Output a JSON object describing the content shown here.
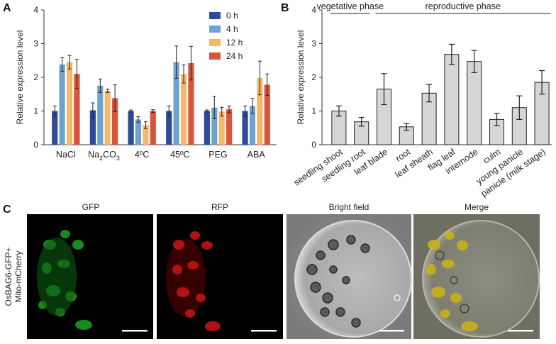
{
  "panels": {
    "a": "A",
    "b": "B",
    "c": "C"
  },
  "chart_data": [
    {
      "panel": "A",
      "type": "bar",
      "ylabel": "Relative expression level",
      "ylim": [
        0,
        4
      ],
      "yticks": [
        "0",
        "1",
        "2",
        "3",
        "4"
      ],
      "categories": [
        "NaCl",
        "Na2CO3",
        "4ºC",
        "45ºC",
        "PEG",
        "ABA"
      ],
      "category_labels": [
        {
          "main": "NaCl",
          "sub": "",
          "tail": ""
        },
        {
          "main": "Na",
          "sub": "2",
          "tail": "CO",
          "sub2": "3"
        },
        {
          "main": "4ºC",
          "sub": "",
          "tail": ""
        },
        {
          "main": "45ºC",
          "sub": "",
          "tail": ""
        },
        {
          "main": "PEG",
          "sub": "",
          "tail": ""
        },
        {
          "main": "ABA",
          "sub": "",
          "tail": ""
        }
      ],
      "legend_position": "top-right",
      "series": [
        {
          "name": "0 h",
          "color": "#2e4a9a",
          "values": [
            1.0,
            1.02,
            1.0,
            1.0,
            1.0,
            1.0
          ],
          "errors": [
            0.15,
            0.22,
            0.03,
            0.15,
            0.03,
            0.15
          ]
        },
        {
          "name": "4 h",
          "color": "#6fa3cf",
          "values": [
            2.38,
            1.75,
            0.75,
            2.45,
            1.1,
            1.15
          ],
          "errors": [
            0.2,
            0.2,
            0.08,
            0.48,
            0.33,
            0.22
          ]
        },
        {
          "name": "12 h",
          "color": "#f5b86a",
          "values": [
            2.45,
            1.6,
            0.58,
            2.1,
            0.98,
            1.98
          ],
          "errors": [
            0.2,
            0.05,
            0.1,
            0.27,
            0.13,
            0.5
          ]
        },
        {
          "name": "24 h",
          "color": "#d9543a",
          "values": [
            2.1,
            1.38,
            1.0,
            2.42,
            1.05,
            1.78
          ],
          "errors": [
            0.43,
            0.4,
            0.04,
            0.5,
            0.1,
            0.32
          ]
        }
      ]
    },
    {
      "panel": "B",
      "type": "bar",
      "ylabel": "Relative expression level",
      "ylim": [
        0,
        4
      ],
      "yticks": [
        "0",
        "1",
        "2",
        "3",
        "4"
      ],
      "phase_labels": [
        "vegetative phase",
        "reproductive phase"
      ],
      "categories": [
        "seedling shoot",
        "seedling root",
        "leaf blade",
        "root",
        "leaf sheath",
        "flag leaf",
        "internode",
        "culm",
        "young panicle",
        "panicle (milk stage)"
      ],
      "values": [
        1.0,
        0.68,
        1.65,
        0.53,
        1.53,
        2.68,
        2.47,
        0.75,
        1.1,
        1.85
      ],
      "errors": [
        0.15,
        0.13,
        0.46,
        0.1,
        0.26,
        0.3,
        0.33,
        0.18,
        0.35,
        0.35
      ],
      "bar_color": "#d6d6d6"
    }
  ],
  "microscopy": {
    "row_label_line1": "OsBAG6-GFP+",
    "row_label_line2": "Mito-mCherry",
    "titles": [
      "GFP",
      "RFP",
      "Bright field",
      "Merge"
    ]
  }
}
